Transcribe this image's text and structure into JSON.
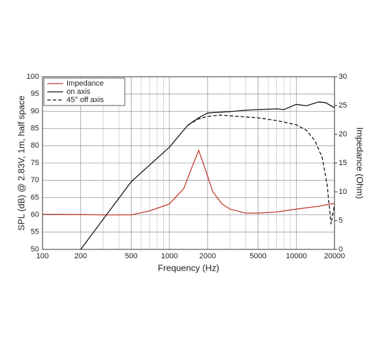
{
  "chart_data": {
    "type": "line",
    "xlabel": "Frequency (Hz)",
    "ylabel": "SPL (dB) @ 2.83V, 1m, half space",
    "y2label": "Impedance (Ohm)",
    "xscale": "log",
    "xlim": [
      100,
      20000
    ],
    "xticks": [
      100,
      200,
      500,
      1000,
      2000,
      5000,
      10000,
      20000
    ],
    "minor_xticks": [
      300,
      400,
      600,
      700,
      800,
      900,
      3000,
      4000,
      6000,
      7000,
      8000,
      9000
    ],
    "ylim": [
      50,
      100
    ],
    "yticks": [
      50,
      55,
      60,
      65,
      70,
      75,
      80,
      85,
      90,
      95,
      100
    ],
    "y2lim": [
      0,
      30
    ],
    "y2ticks": [
      0,
      5,
      10,
      15,
      20,
      25,
      30
    ],
    "grid": true,
    "legend": "upper left",
    "series": [
      {
        "name": "Impedance",
        "color": "#c0392b",
        "axis": "y2",
        "dash": false,
        "x": [
          100,
          200,
          300,
          500,
          700,
          1000,
          1300,
          1500,
          1700,
          1900,
          2200,
          2600,
          3000,
          4000,
          5000,
          7000,
          10000,
          15000,
          20000
        ],
        "values": [
          6.1,
          6.05,
          6.0,
          6.0,
          6.7,
          7.9,
          10.6,
          14.2,
          17.2,
          14.2,
          10.0,
          7.9,
          7.0,
          6.3,
          6.3,
          6.5,
          7.0,
          7.5,
          8.0
        ]
      },
      {
        "name": "on axis",
        "color": "#111111",
        "dash": false,
        "x": [
          200,
          500,
          1000,
          1400,
          1700,
          2000,
          3000,
          4000,
          5000,
          7000,
          8000,
          10000,
          12000,
          15000,
          17000,
          20000
        ],
        "values": [
          50,
          69.6,
          79.6,
          86,
          88.1,
          89.5,
          89.9,
          90.3,
          90.5,
          90.7,
          90.5,
          92,
          91.6,
          92.7,
          92.5,
          91
        ]
      },
      {
        "name": "45° off axis",
        "color": "#111111",
        "dash": true,
        "x": [
          1400,
          1700,
          2000,
          2500,
          3000,
          5000,
          7000,
          10000,
          12000,
          14000,
          16000,
          17500,
          18800,
          20000
        ],
        "values": [
          86,
          87.8,
          88.5,
          88.9,
          88.7,
          88.1,
          87.3,
          86.1,
          84.5,
          81.5,
          76.6,
          68.7,
          57.3,
          63
        ]
      }
    ]
  }
}
